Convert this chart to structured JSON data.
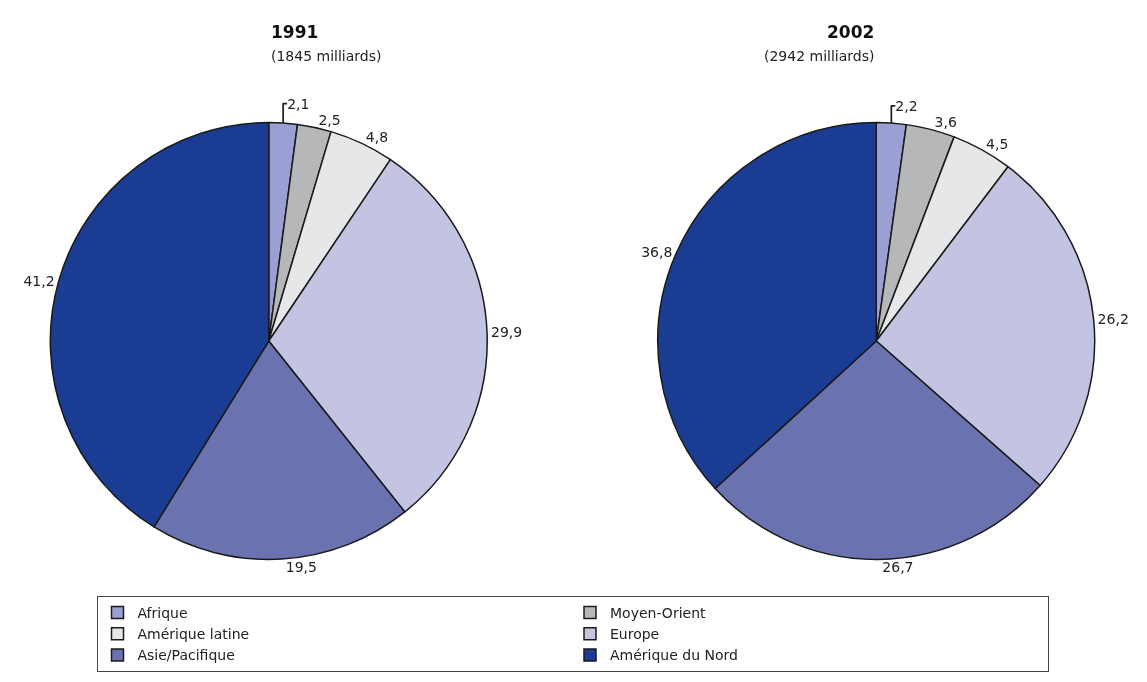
{
  "chart_data": [
    {
      "type": "pie",
      "title": "1991",
      "subtitle": "(1845 milliards)",
      "categories": [
        "Afrique",
        "Moyen-Orient",
        "Amérique latine",
        "Europe",
        "Asie/Pacifique",
        "Amérique du Nord"
      ],
      "values": [
        2.1,
        2.5,
        4.8,
        29.9,
        19.5,
        41.2
      ],
      "value_labels": [
        "2,1",
        "2,5",
        "4,8",
        "29,9",
        "19,5",
        "41,2"
      ],
      "colors": [
        "#9a9fd4",
        "#b6b7b9",
        "#e6e7e8",
        "#c3c4e2",
        "#6b72b0",
        "#1b3c93"
      ],
      "legend": "bottom"
    },
    {
      "type": "pie",
      "title": "2002",
      "subtitle": "(2942 milliards)",
      "values": [
        2.2,
        3.6,
        4.5,
        26.2,
        26.7,
        36.8
      ],
      "value_labels": [
        "2,2",
        "3,6",
        "4,5",
        "26,2",
        "26,7",
        "36,8"
      ],
      "colors": [
        "#9a9fd4",
        "#b6b7b9",
        "#e6e7e8",
        "#c3c4e2",
        "#6b72b0",
        "#1b3c93"
      ]
    }
  ]
}
